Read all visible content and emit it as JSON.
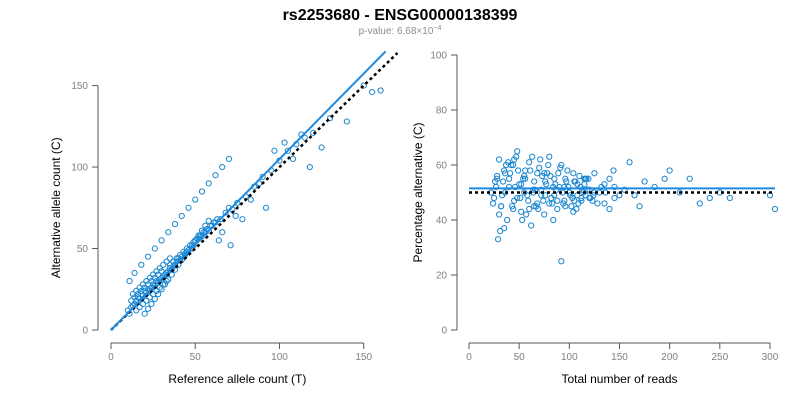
{
  "figure": {
    "title": "rs2253680 - ENSG00000138399",
    "subtitle_prefix": "p-value: 6.68×10",
    "subtitle_exponent": "−4"
  },
  "colors": {
    "points": "#1a86cf",
    "fit_line": "#1f8ae0",
    "reference_line": "#000000",
    "axis": "#555555",
    "tick_text": "#808080"
  },
  "chart_data": [
    {
      "type": "scatter",
      "xlabel": "Reference allele count (T)",
      "ylabel": "Alternative allele count (C)",
      "xlim": [
        0,
        165
      ],
      "ylim": [
        0,
        170
      ],
      "xticks": [
        0,
        50,
        100,
        150
      ],
      "yticks": [
        0,
        50,
        100,
        150
      ],
      "grid": false,
      "fit_line": {
        "x": [
          0,
          163
        ],
        "y": [
          0,
          171
        ]
      },
      "reference_line": {
        "x": [
          0,
          170
        ],
        "y": [
          0,
          170
        ]
      },
      "points_x": [
        10,
        12,
        14,
        15,
        16,
        18,
        20,
        11,
        13,
        17,
        22,
        25,
        19,
        21,
        24,
        27,
        30,
        28,
        33,
        35,
        38,
        40,
        26,
        23,
        29,
        31,
        34,
        36,
        37,
        42,
        45,
        48,
        50,
        32,
        39,
        41,
        44,
        46,
        49,
        52,
        55,
        58,
        60,
        53,
        56,
        62,
        65,
        68,
        70,
        72,
        75,
        80,
        85,
        90,
        95,
        100,
        105,
        110,
        115,
        120,
        12,
        14,
        16,
        18,
        20,
        22,
        24,
        26,
        28,
        30,
        15,
        17,
        19,
        21,
        23,
        25,
        27,
        29,
        31,
        33,
        35,
        37,
        39,
        41,
        43,
        45,
        47,
        49,
        51,
        53,
        55,
        57,
        59,
        61,
        63,
        20,
        22,
        24,
        26,
        28,
        30,
        32,
        34,
        36,
        38,
        40,
        42,
        44,
        46,
        48,
        50,
        52,
        54,
        56,
        58,
        13,
        15,
        17,
        19,
        21,
        23,
        25,
        27,
        29,
        31,
        33,
        35,
        64,
        66,
        71,
        74,
        78,
        83,
        88,
        92,
        97,
        103,
        108,
        113,
        118,
        125,
        130,
        140,
        150,
        155,
        160,
        170,
        11,
        14,
        18,
        22,
        26,
        30,
        34,
        38,
        42,
        46,
        50,
        54,
        58,
        62,
        66,
        70
      ],
      "points_y": [
        12,
        14,
        16,
        18,
        20,
        22,
        24,
        10,
        15,
        19,
        25,
        28,
        21,
        23,
        26,
        30,
        32,
        29,
        35,
        38,
        40,
        44,
        27,
        24,
        31,
        33,
        36,
        37,
        39,
        45,
        48,
        50,
        55,
        34,
        42,
        43,
        47,
        49,
        52,
        56,
        58,
        61,
        64,
        57,
        60,
        66,
        68,
        72,
        75,
        74,
        78,
        82,
        88,
        94,
        98,
        104,
        110,
        114,
        118,
        121,
        18,
        20,
        22,
        24,
        26,
        28,
        30,
        32,
        34,
        36,
        12,
        14,
        16,
        18,
        20,
        22,
        24,
        26,
        28,
        30,
        40,
        42,
        44,
        46,
        48,
        50,
        52,
        54,
        56,
        58,
        60,
        62,
        64,
        66,
        68,
        10,
        13,
        16,
        19,
        22,
        25,
        28,
        31,
        34,
        37,
        40,
        43,
        46,
        49,
        52,
        55,
        58,
        61,
        64,
        67,
        22,
        24,
        26,
        28,
        30,
        32,
        34,
        36,
        38,
        40,
        42,
        44,
        55,
        60,
        52,
        70,
        68,
        80,
        90,
        75,
        110,
        115,
        105,
        120,
        100,
        112,
        130,
        128,
        150,
        146,
        147,
        133,
        30,
        35,
        40,
        45,
        50,
        55,
        60,
        65,
        70,
        75,
        80,
        85,
        90,
        95,
        100,
        105
      ]
    },
    {
      "type": "scatter",
      "xlabel": "Total number of reads",
      "ylabel": "Percentage alternative (C)",
      "xlim": [
        0,
        305
      ],
      "ylim": [
        0,
        100
      ],
      "xticks": [
        0,
        50,
        100,
        150,
        200,
        250,
        300
      ],
      "yticks": [
        0,
        20,
        40,
        60,
        80,
        100
      ],
      "grid": false,
      "fit_line": {
        "y": 51.5
      },
      "reference_line": {
        "y": 50
      },
      "points_x": [
        22,
        25,
        28,
        30,
        32,
        35,
        38,
        40,
        42,
        45,
        48,
        50,
        52,
        55,
        58,
        60,
        62,
        65,
        68,
        70,
        72,
        75,
        78,
        80,
        82,
        85,
        88,
        90,
        92,
        95,
        98,
        100,
        102,
        105,
        108,
        110,
        112,
        115,
        118,
        120,
        125,
        130,
        135,
        140,
        145,
        150,
        160,
        170,
        200,
        220,
        230,
        250,
        260,
        300,
        305,
        24,
        27,
        31,
        34,
        37,
        41,
        44,
        47,
        51,
        54,
        57,
        61,
        64,
        67,
        71,
        74,
        77,
        81,
        84,
        87,
        91,
        94,
        97,
        101,
        104,
        107,
        111,
        114,
        117,
        121,
        26,
        29,
        33,
        36,
        39,
        43,
        46,
        49,
        53,
        56,
        59,
        63,
        66,
        69,
        73,
        76,
        79,
        83,
        86,
        89,
        93,
        96,
        99,
        103,
        106,
        109,
        113,
        116,
        119,
        123,
        28,
        32,
        36,
        40,
        44,
        48,
        52,
        56,
        60,
        64,
        68,
        72,
        76,
        80,
        84,
        88,
        92,
        96,
        100,
        104,
        108,
        112,
        116,
        120,
        124,
        128,
        132,
        136,
        140,
        144,
        30,
        35,
        45,
        55,
        65,
        75,
        85,
        95,
        105,
        115,
        125,
        135,
        145,
        155,
        165,
        175,
        185,
        195,
        210,
        240
      ],
      "points_y": [
        50,
        48,
        55,
        62,
        45,
        58,
        40,
        52,
        60,
        47,
        65,
        53,
        43,
        56,
        49,
        61,
        38,
        54,
        46,
        59,
        51,
        42,
        57,
        63,
        48,
        55,
        44,
        52,
        60,
        47,
        58,
        50,
        45,
        54,
        49,
        56,
        47,
        53,
        51,
        48,
        57,
        50,
        46,
        55,
        52,
        49,
        61,
        45,
        58,
        55,
        46,
        50,
        48,
        49,
        44,
        46,
        52,
        36,
        54,
        60,
        57,
        44,
        63,
        48,
        55,
        42,
        58,
        50,
        45,
        62,
        47,
        53,
        56,
        40,
        51,
        59,
        46,
        54,
        49,
        57,
        44,
        52,
        50,
        55,
        48,
        54,
        33,
        49,
        57,
        61,
        45,
        52,
        58,
        40,
        55,
        47,
        63,
        51,
        44,
        56,
        49,
        60,
        46,
        53,
        57,
        50,
        45,
        52,
        48,
        54,
        46,
        51,
        49,
        55,
        47,
        56,
        45,
        50,
        55,
        60,
        48,
        53,
        58,
        44,
        51,
        57,
        49,
        54,
        46,
        52,
        47,
        25,
        55,
        50,
        43,
        53,
        48,
        55,
        51,
        49,
        46,
        52,
        50,
        44,
        58,
        42,
        37,
        62,
        50,
        45,
        57,
        49,
        52,
        47,
        55,
        50,
        53,
        48,
        51,
        49,
        54,
        52,
        55,
        50,
        48
      ]
    }
  ]
}
